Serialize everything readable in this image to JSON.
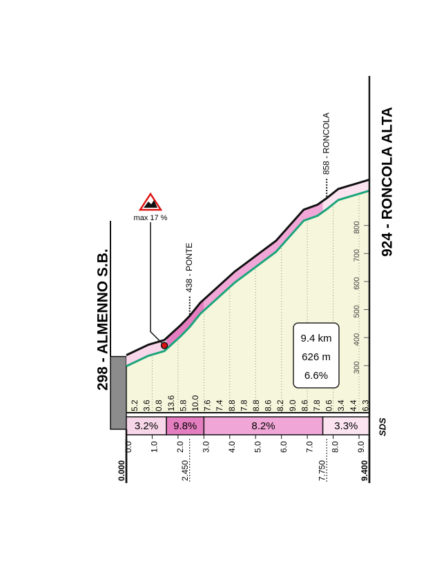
{
  "chart_data": {
    "type": "area",
    "title_start": "298 - ALMENNO S.B.",
    "title_end": "924 - RONCOLA ALTA",
    "x": [
      0,
      0.85,
      1.47,
      2.1,
      2.45,
      2.86,
      4.19,
      5.79,
      6.86,
      7.4,
      7.75,
      8.2,
      9.4
    ],
    "values": [
      298,
      335,
      352,
      405,
      438,
      485,
      596,
      706,
      817,
      835,
      858,
      891,
      924
    ],
    "line_color": "#1aa57a",
    "fill_color": "#f5f6dc",
    "xlim": [
      0,
      9.4
    ],
    "ylim": [
      132,
      1112
    ],
    "yticks": [
      300,
      400,
      500,
      600,
      700,
      800
    ],
    "xticks": [
      {
        "value": 0,
        "label": "0.0"
      },
      {
        "value": 1,
        "label": "1.0"
      },
      {
        "value": 2,
        "label": "2.0"
      },
      {
        "value": 3,
        "label": "3.0"
      },
      {
        "value": 4,
        "label": "4.0"
      },
      {
        "value": 5,
        "label": "5.0"
      },
      {
        "value": 6,
        "label": "6.0"
      },
      {
        "value": 7,
        "label": "7.0"
      },
      {
        "value": 8,
        "label": "8.0"
      },
      {
        "value": 9,
        "label": "9.0"
      }
    ],
    "marked_km": [
      {
        "value": 0,
        "label": "0.000"
      },
      {
        "value": 2.45,
        "label": "2.450"
      },
      {
        "value": 7.75,
        "label": "7.750"
      },
      {
        "value": 9.4,
        "label": "9.400"
      }
    ],
    "gradients": [
      5.2,
      3.6,
      0.8,
      13.6,
      5.8,
      {
        "value": 10,
        "label": "10.0"
      },
      7.6,
      7.4,
      8.8,
      7.8,
      8.8,
      8.6,
      8.2,
      {
        "value": 9,
        "label": "9.0"
      },
      8.6,
      7.8,
      0.6,
      3.4,
      4.4,
      6.3
    ],
    "sections": {
      "bounds": [
        0,
        1.55,
        3.0,
        7.6,
        9.4
      ],
      "values": [
        3.2,
        9.8,
        8.2,
        3.3
      ],
      "value_labels": [
        "3.2%",
        "9.8%",
        "8.2%",
        "3.3%"
      ],
      "colors": [
        "#f7d6e9",
        "#e57ec0",
        "#f0a6d6",
        "#fbe4f0"
      ]
    },
    "annotations": [
      {
        "x": 2.45,
        "label": "438 - PONTE"
      },
      {
        "x": 7.75,
        "label": "858 - RONCOLA"
      }
    ],
    "max_gradient": {
      "x": 1.47,
      "label": "max 17 %"
    },
    "summary": [
      "9.4 km",
      "626 m",
      "6.6%"
    ],
    "logo": "SDS"
  }
}
